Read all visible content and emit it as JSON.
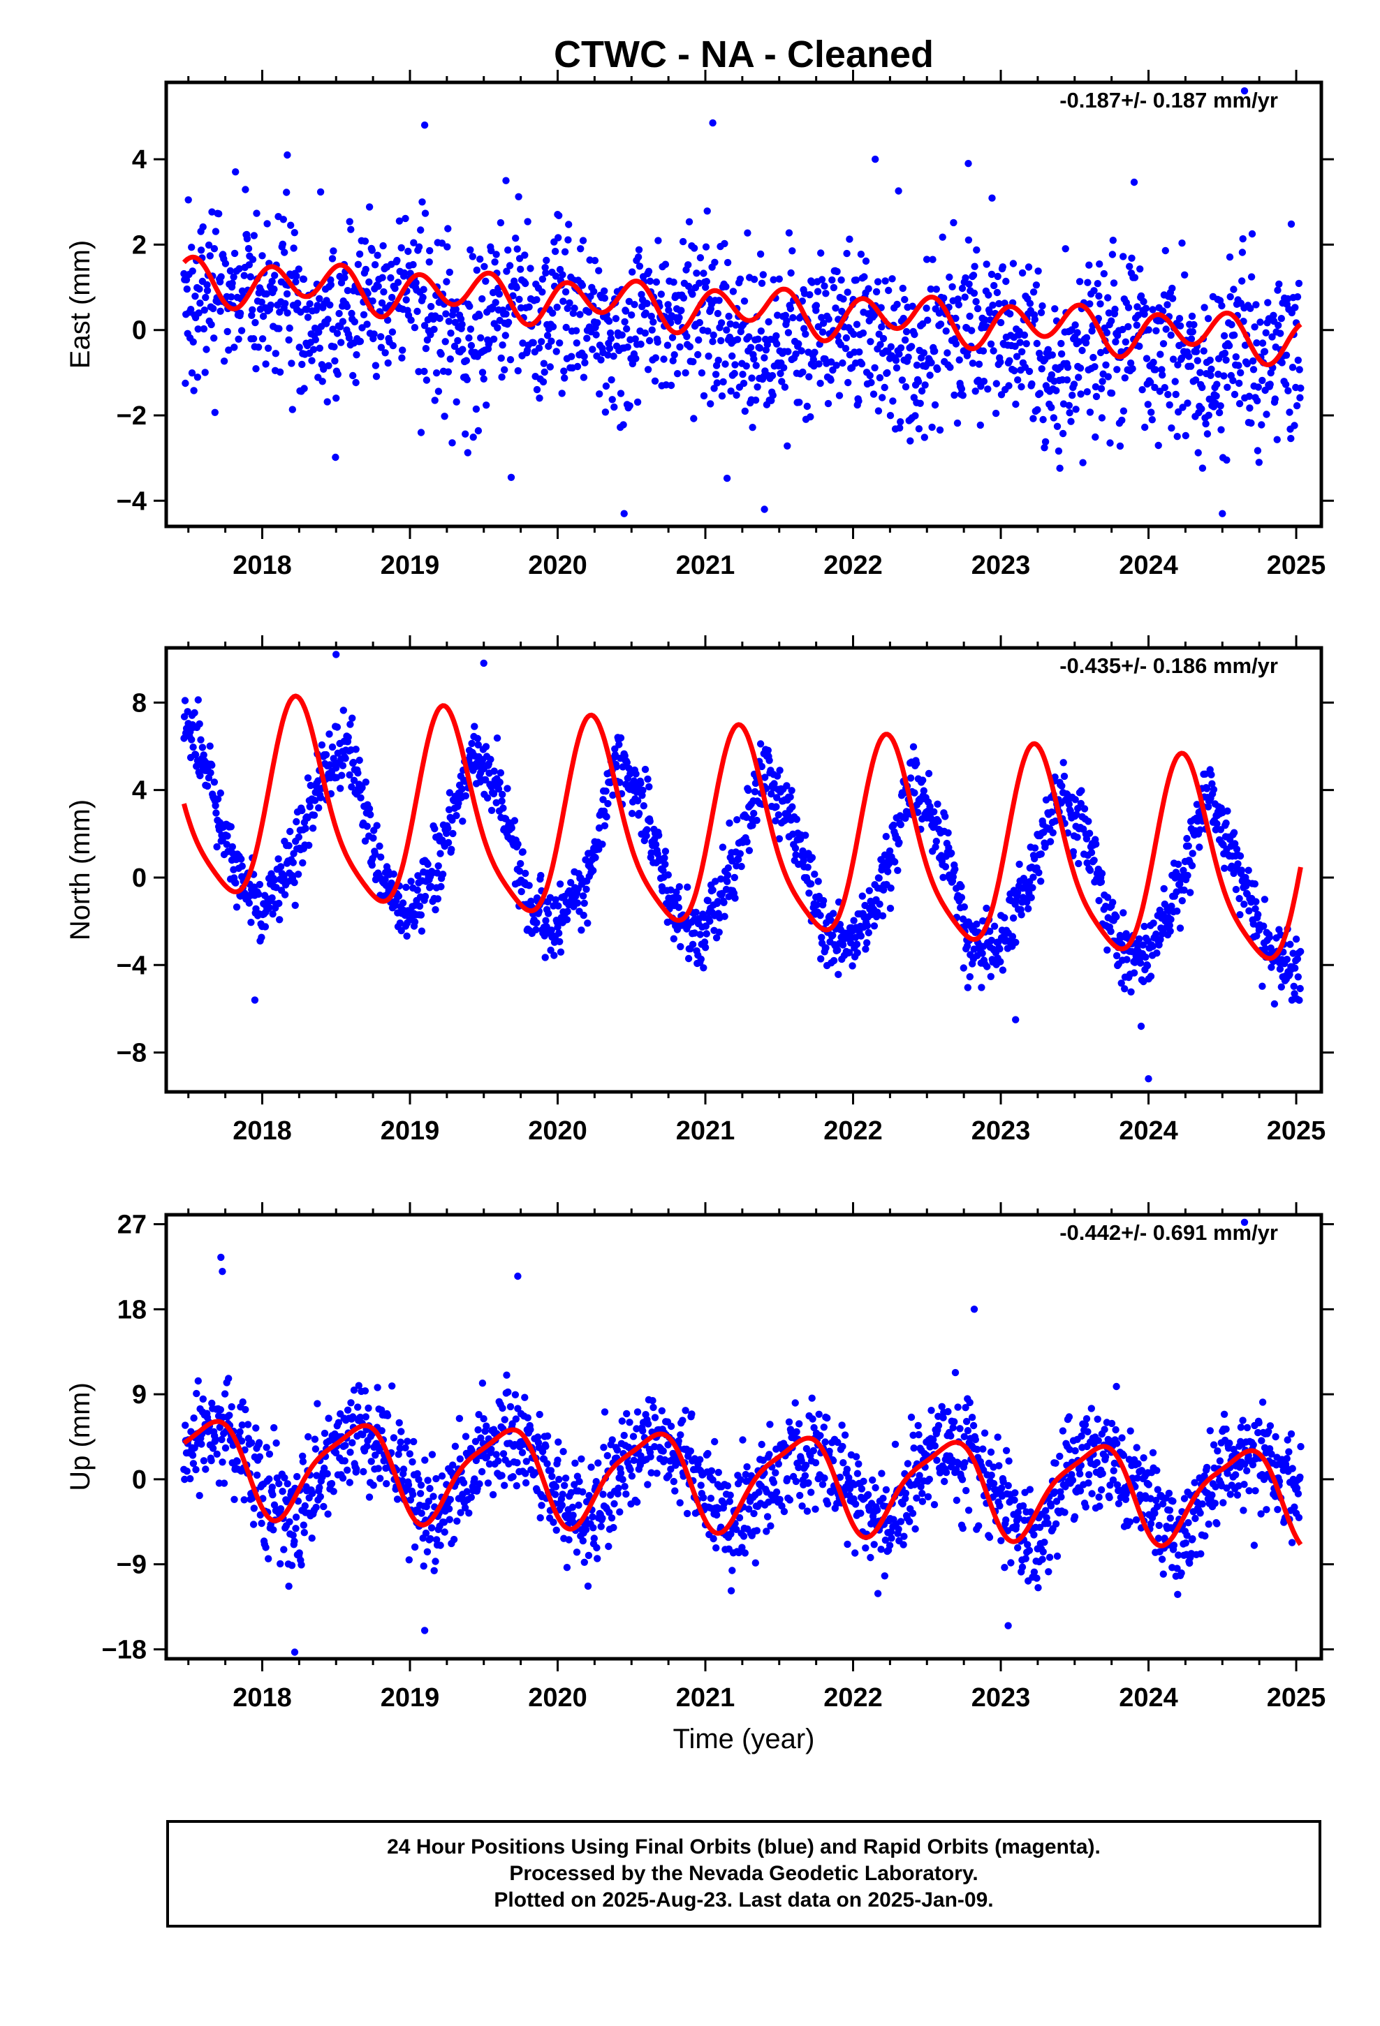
{
  "title": "CTWC  - NA - Cleaned",
  "colors": {
    "points": "#0000ff",
    "fit": "#ff0000",
    "axes": "#000000"
  },
  "chart_data": [
    {
      "type": "scatter",
      "panel": "east",
      "ylabel": "East (mm)",
      "xlabel": "",
      "rate_label": "-0.187+/- 0.187 mm/yr",
      "rate_mm_per_yr": -0.187,
      "rate_sigma": 0.187,
      "xlim": [
        2017.35,
        2025.17
      ],
      "ylim": [
        -4.6,
        5.8
      ],
      "xticks": [
        2018,
        2019,
        2020,
        2021,
        2022,
        2023,
        2024,
        2025
      ],
      "xtick_labels": [
        "2018",
        "2019",
        "2020",
        "2021",
        "2022",
        "2023",
        "2024",
        "2025"
      ],
      "yticks": [
        -4,
        -2,
        0,
        2,
        4
      ],
      "ytick_labels": [
        "−4",
        "−2",
        "0",
        "2",
        "4"
      ],
      "series": [
        {
          "kind": "points",
          "x_start": 2017.47,
          "x_end": 2025.03,
          "x": [
            2017.5,
            2017.6,
            2017.8,
            2018.0,
            2018.2,
            2018.4,
            2018.6,
            2018.8,
            2019.0,
            2019.2,
            2019.4,
            2019.6,
            2019.8,
            2020.0,
            2020.2,
            2020.4,
            2020.6,
            2020.8,
            2021.0,
            2021.2,
            2021.4,
            2021.6,
            2021.8,
            2022.0,
            2022.2,
            2022.4,
            2022.6,
            2022.8,
            2023.0,
            2023.2,
            2023.4,
            2023.6,
            2023.8,
            2024.0,
            2024.2,
            2024.4,
            2024.6,
            2024.8,
            2025.0
          ],
          "y": [
            0.2,
            1.0,
            0.7,
            0.8,
            1.0,
            -0.3,
            0.6,
            0.6,
            0.7,
            0.4,
            -0.5,
            0.5,
            0.4,
            0.6,
            0.1,
            -0.6,
            0.3,
            0.1,
            0.5,
            0.0,
            -0.8,
            0.1,
            -0.1,
            0.2,
            0.0,
            -1.0,
            0.0,
            -0.2,
            0.1,
            -0.2,
            -1.2,
            -0.1,
            -0.3,
            -0.4,
            -0.1,
            -1.4,
            -0.3,
            -0.5,
            -0.3
          ],
          "scatter_sigma": 1.2,
          "outliers": [
            [
              2018.17,
              4.1
            ],
            [
              2019.1,
              4.8
            ],
            [
              2021.05,
              4.85
            ],
            [
              2022.15,
              4.0
            ],
            [
              2022.78,
              3.9
            ],
            [
              2024.65,
              5.6
            ],
            [
              2019.65,
              3.5
            ],
            [
              2020.45,
              -4.3
            ],
            [
              2021.4,
              -4.2
            ],
            [
              2024.5,
              -4.3
            ]
          ]
        },
        {
          "kind": "fit",
          "offset": 0.5,
          "rate": -0.187,
          "annual_amp": 0.2,
          "annual_phase": 0.35,
          "semiannual_amp": 0.45,
          "semiannual_phase": 0.05,
          "ref_year": 2021.2
        }
      ]
    },
    {
      "type": "scatter",
      "panel": "north",
      "ylabel": "North (mm)",
      "xlabel": "",
      "rate_label": "-0.435+/- 0.186 mm/yr",
      "rate_mm_per_yr": -0.435,
      "rate_sigma": 0.186,
      "xlim": [
        2017.35,
        2025.17
      ],
      "ylim": [
        -9.8,
        10.5
      ],
      "xticks": [
        2018,
        2019,
        2020,
        2021,
        2022,
        2023,
        2024,
        2025
      ],
      "xtick_labels": [
        "2018",
        "2019",
        "2020",
        "2021",
        "2022",
        "2023",
        "2024",
        "2025"
      ],
      "yticks": [
        -8,
        -4,
        0,
        4,
        8
      ],
      "ytick_labels": [
        "−8",
        "−4",
        "0",
        "4",
        "8"
      ],
      "series": [
        {
          "kind": "points",
          "x_start": 2017.47,
          "x_end": 2025.03,
          "x": [
            2017.5,
            2017.6,
            2017.8,
            2018.0,
            2018.2,
            2018.4,
            2018.6,
            2018.8,
            2019.0,
            2019.2,
            2019.4,
            2019.6,
            2019.8,
            2020.0,
            2020.2,
            2020.4,
            2020.6,
            2020.8,
            2021.0,
            2021.2,
            2021.4,
            2021.6,
            2021.8,
            2022.0,
            2022.2,
            2022.4,
            2022.6,
            2022.8,
            2023.0,
            2023.2,
            2023.4,
            2023.6,
            2023.8,
            2024.0,
            2024.2,
            2024.4,
            2024.6,
            2024.8,
            2025.0
          ],
          "y": [
            7.0,
            5.5,
            0.5,
            -1.5,
            0.5,
            5.0,
            6.0,
            0.0,
            -1.5,
            0.5,
            5.5,
            4.0,
            -1.5,
            -2.0,
            0.0,
            5.5,
            3.0,
            -2.0,
            -2.5,
            0.5,
            5.0,
            2.5,
            -2.5,
            -3.0,
            -0.5,
            4.5,
            2.0,
            -3.0,
            -3.0,
            0.0,
            4.0,
            1.5,
            -3.5,
            -3.5,
            -0.5,
            4.0,
            0.5,
            -3.5,
            -4.5
          ],
          "scatter_sigma": 0.9,
          "outliers": [
            [
              2018.5,
              10.2
            ],
            [
              2019.5,
              9.8
            ],
            [
              2023.1,
              -6.5
            ],
            [
              2023.95,
              -6.8
            ],
            [
              2024.0,
              -9.2
            ],
            [
              2017.95,
              -5.6
            ]
          ]
        },
        {
          "kind": "fit",
          "offset": 1.8,
          "rate": -0.435,
          "annual_amp": 4.4,
          "annual_phase": 0.25,
          "semiannual_amp": 0.9,
          "semiannual_phase": 0.2,
          "ref_year": 2021.2
        }
      ]
    },
    {
      "type": "scatter",
      "panel": "up",
      "ylabel": "Up (mm)",
      "xlabel": "Time (year)",
      "rate_label": "-0.442+/- 0.691 mm/yr",
      "rate_mm_per_yr": -0.442,
      "rate_sigma": 0.691,
      "xlim": [
        2017.35,
        2025.17
      ],
      "ylim": [
        -19.0,
        28.0
      ],
      "xticks": [
        2018,
        2019,
        2020,
        2021,
        2022,
        2023,
        2024,
        2025
      ],
      "xtick_labels": [
        "2018",
        "2019",
        "2020",
        "2021",
        "2022",
        "2023",
        "2024",
        "2025"
      ],
      "yticks": [
        -18,
        -9,
        0,
        9,
        18,
        27
      ],
      "ytick_labels": [
        "−18",
        "−9",
        "0",
        "9",
        "18",
        "27"
      ],
      "series": [
        {
          "kind": "points",
          "x_start": 2017.47,
          "x_end": 2025.03,
          "x": [
            2017.5,
            2017.6,
            2017.8,
            2018.0,
            2018.2,
            2018.4,
            2018.6,
            2018.8,
            2019.0,
            2019.2,
            2019.4,
            2019.6,
            2019.8,
            2020.0,
            2020.2,
            2020.4,
            2020.6,
            2020.8,
            2021.0,
            2021.2,
            2021.4,
            2021.6,
            2021.8,
            2022.0,
            2022.2,
            2022.4,
            2022.6,
            2022.8,
            2023.0,
            2023.2,
            2023.4,
            2023.6,
            2023.8,
            2024.0,
            2024.2,
            2024.4,
            2024.6,
            2024.8,
            2025.0
          ],
          "y": [
            2.0,
            5.5,
            4.0,
            0.0,
            -4.5,
            1.0,
            5.0,
            3.0,
            0.0,
            -5.0,
            1.0,
            4.5,
            3.0,
            -0.5,
            -5.5,
            0.5,
            4.0,
            3.0,
            -1.0,
            -5.5,
            0.0,
            3.5,
            2.5,
            -1.5,
            -6.0,
            -0.5,
            3.5,
            2.0,
            -1.5,
            -6.5,
            -0.5,
            3.0,
            1.5,
            -2.0,
            -7.0,
            -1.0,
            2.5,
            1.5,
            -1.5
          ],
          "scatter_sigma": 3.4,
          "outliers": [
            [
              2017.72,
              23.5
            ],
            [
              2017.73,
              22.0
            ],
            [
              2019.73,
              21.5
            ],
            [
              2018.22,
              -18.3
            ],
            [
              2024.65,
              27.2
            ],
            [
              2022.82,
              18.0
            ],
            [
              2023.05,
              -15.5
            ],
            [
              2019.1,
              -16.0
            ]
          ]
        },
        {
          "kind": "fit",
          "offset": 0.0,
          "rate": -0.442,
          "annual_amp": 4.8,
          "annual_phase": 0.62,
          "semiannual_amp": 1.2,
          "semiannual_phase": 0.3,
          "ref_year": 2021.2
        }
      ]
    }
  ],
  "footer": {
    "line1": "24 Hour Positions Using Final Orbits (blue) and Rapid Orbits (magenta).",
    "line2": "Processed by the Nevada Geodetic Laboratory.",
    "line3": "Plotted on 2025-Aug-23. Last data on 2025-Jan-09."
  }
}
